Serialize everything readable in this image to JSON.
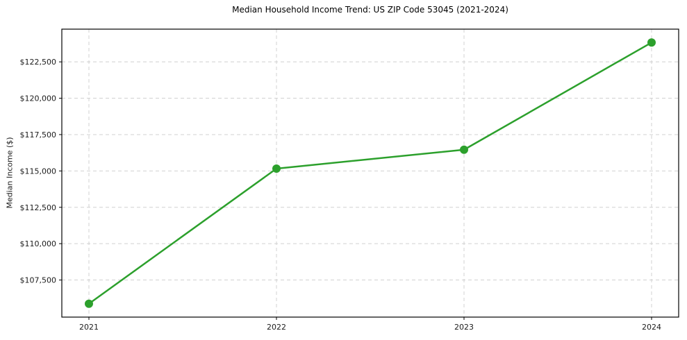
{
  "window": {
    "background": "#ffffff"
  },
  "chart_data": {
    "type": "line",
    "title": "Median Household Income Trend: US ZIP Code 53045 (2021-2024)",
    "xlabel": "",
    "ylabel": "Median Income ($)",
    "categories": [
      "2021",
      "2022",
      "2023",
      "2024"
    ],
    "series": [
      {
        "name": "Median Income",
        "values": [
          105870,
          115160,
          116460,
          123830
        ],
        "color": "#2ca02c",
        "marker": "circle"
      }
    ],
    "yticks": [
      107500,
      110000,
      112500,
      115000,
      117500,
      120000,
      122500
    ],
    "ytick_labels": [
      "$107,500",
      "$110,000",
      "$112,500",
      "$115,000",
      "$117,500",
      "$120,000",
      "$122,500"
    ],
    "ylim": [
      104950,
      124750
    ],
    "grid": true,
    "grid_style": "dashed",
    "legend_position": "none",
    "styles": {
      "line_color": "#2ca02c",
      "grid_color": "#d0d0d0",
      "grid_dash": "5,4",
      "spine_color": "#000000",
      "tick_color": "#000000",
      "tick_label_color": "#1a1a1a",
      "title_color": "#000000"
    }
  }
}
